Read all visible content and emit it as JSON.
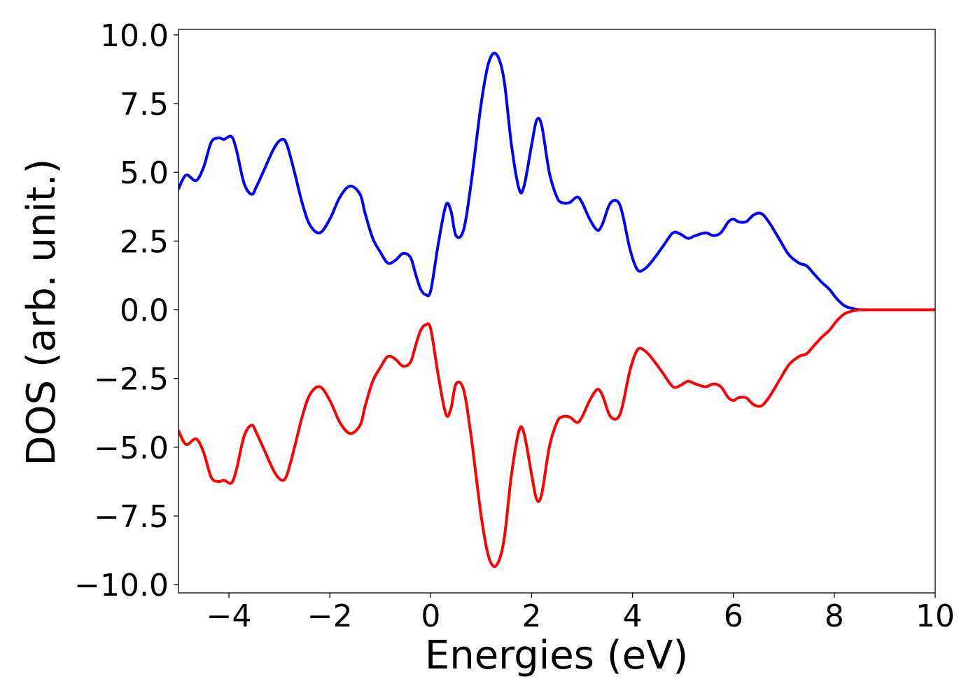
{
  "chart_data": {
    "type": "line",
    "title": "",
    "xlabel": "Energies (eV)",
    "ylabel": "DOS (arb. unit.)",
    "xlim": [
      -5,
      10
    ],
    "ylim": [
      -10.3,
      10.2
    ],
    "x_ticks": [
      -4,
      -2,
      0,
      2,
      4,
      6,
      8,
      10
    ],
    "x_tick_labels": [
      "−4",
      "−2",
      "0",
      "2",
      "4",
      "6",
      "8",
      "10"
    ],
    "y_ticks": [
      10,
      7.5,
      5,
      2.5,
      0,
      -2.5,
      -5,
      -7.5,
      -10
    ],
    "y_tick_labels": [
      "10.0",
      "7.5",
      "5.0",
      "2.5",
      "0.0",
      "−2.5",
      "−5.0",
      "−7.5",
      "−10.0"
    ],
    "grid": false,
    "legend": "none",
    "series": [
      {
        "color": "#0000ff",
        "x": [
          -5.0,
          -4.85,
          -4.65,
          -4.5,
          -4.35,
          -4.2,
          -4.1,
          -3.95,
          -3.85,
          -3.7,
          -3.55,
          -3.45,
          -3.3,
          -3.1,
          -2.95,
          -2.85,
          -2.7,
          -2.55,
          -2.4,
          -2.2,
          -2.0,
          -1.8,
          -1.6,
          -1.4,
          -1.3,
          -1.15,
          -1.0,
          -0.85,
          -0.7,
          -0.55,
          -0.4,
          -0.3,
          -0.2,
          -0.1,
          0.0,
          0.15,
          0.3,
          0.4,
          0.5,
          0.65,
          0.8,
          1.0,
          1.15,
          1.3,
          1.45,
          1.6,
          1.75,
          1.85,
          2.0,
          2.1,
          2.2,
          2.35,
          2.5,
          2.6,
          2.75,
          2.9,
          3.0,
          3.15,
          3.3,
          3.4,
          3.55,
          3.7,
          3.8,
          3.95,
          4.1,
          4.25,
          4.4,
          4.6,
          4.8,
          4.95,
          5.1,
          5.25,
          5.45,
          5.6,
          5.75,
          5.9,
          6.0,
          6.1,
          6.25,
          6.4,
          6.55,
          6.7,
          6.9,
          7.1,
          7.3,
          7.45,
          7.6,
          7.75,
          7.9,
          8.05,
          8.2,
          8.35,
          8.5,
          8.7,
          9.0,
          9.5,
          10.0
        ],
        "y": [
          4.4,
          4.9,
          4.7,
          5.2,
          6.1,
          6.25,
          6.2,
          6.3,
          5.8,
          4.6,
          4.2,
          4.5,
          5.1,
          5.9,
          6.2,
          6.0,
          5.0,
          3.9,
          3.1,
          2.8,
          3.3,
          4.1,
          4.5,
          4.2,
          3.5,
          2.6,
          2.1,
          1.7,
          1.8,
          2.05,
          1.9,
          1.3,
          0.75,
          0.55,
          0.7,
          2.4,
          3.8,
          3.6,
          2.7,
          2.9,
          4.6,
          7.5,
          9.0,
          9.3,
          8.4,
          6.0,
          4.4,
          4.5,
          6.0,
          6.9,
          6.7,
          5.0,
          4.1,
          3.9,
          3.9,
          4.1,
          3.9,
          3.3,
          2.9,
          3.1,
          3.85,
          3.95,
          3.5,
          2.2,
          1.45,
          1.5,
          1.8,
          2.3,
          2.8,
          2.75,
          2.6,
          2.7,
          2.8,
          2.7,
          2.8,
          3.2,
          3.3,
          3.2,
          3.2,
          3.45,
          3.5,
          3.2,
          2.6,
          2.0,
          1.7,
          1.6,
          1.3,
          1.0,
          0.75,
          0.4,
          0.15,
          0.05,
          0.0,
          0.0,
          0.0,
          0.0,
          0.0
        ]
      },
      {
        "color": "#ff0000",
        "x": [
          -5.0,
          -4.85,
          -4.65,
          -4.5,
          -4.35,
          -4.2,
          -4.1,
          -3.95,
          -3.85,
          -3.7,
          -3.55,
          -3.45,
          -3.3,
          -3.1,
          -2.95,
          -2.85,
          -2.7,
          -2.55,
          -2.4,
          -2.2,
          -2.0,
          -1.8,
          -1.6,
          -1.4,
          -1.3,
          -1.15,
          -1.0,
          -0.85,
          -0.7,
          -0.55,
          -0.4,
          -0.3,
          -0.2,
          -0.1,
          0.0,
          0.15,
          0.3,
          0.4,
          0.5,
          0.65,
          0.8,
          1.0,
          1.15,
          1.3,
          1.45,
          1.6,
          1.75,
          1.85,
          2.0,
          2.1,
          2.2,
          2.35,
          2.5,
          2.6,
          2.75,
          2.9,
          3.0,
          3.15,
          3.3,
          3.4,
          3.55,
          3.7,
          3.8,
          3.95,
          4.1,
          4.25,
          4.4,
          4.6,
          4.8,
          4.95,
          5.1,
          5.25,
          5.45,
          5.6,
          5.75,
          5.9,
          6.0,
          6.1,
          6.25,
          6.4,
          6.55,
          6.7,
          6.9,
          7.1,
          7.3,
          7.45,
          7.6,
          7.75,
          7.9,
          8.05,
          8.2,
          8.35,
          8.5,
          8.7,
          9.0,
          9.5,
          10.0
        ],
        "y": [
          -4.4,
          -4.9,
          -4.7,
          -5.2,
          -6.1,
          -6.25,
          -6.2,
          -6.3,
          -5.8,
          -4.6,
          -4.2,
          -4.5,
          -5.1,
          -5.9,
          -6.2,
          -6.0,
          -5.0,
          -3.9,
          -3.1,
          -2.8,
          -3.3,
          -4.1,
          -4.5,
          -4.2,
          -3.5,
          -2.6,
          -2.1,
          -1.7,
          -1.8,
          -2.05,
          -1.9,
          -1.3,
          -0.75,
          -0.55,
          -0.7,
          -2.4,
          -3.8,
          -3.6,
          -2.7,
          -2.9,
          -4.6,
          -7.5,
          -9.0,
          -9.3,
          -8.4,
          -6.0,
          -4.4,
          -4.5,
          -6.0,
          -6.9,
          -6.7,
          -5.0,
          -4.1,
          -3.9,
          -3.9,
          -4.1,
          -3.9,
          -3.3,
          -2.9,
          -3.1,
          -3.85,
          -3.95,
          -3.5,
          -2.2,
          -1.45,
          -1.5,
          -1.8,
          -2.3,
          -2.8,
          -2.75,
          -2.6,
          -2.7,
          -2.8,
          -2.7,
          -2.8,
          -3.2,
          -3.3,
          -3.2,
          -3.2,
          -3.45,
          -3.5,
          -3.2,
          -2.6,
          -2.0,
          -1.7,
          -1.6,
          -1.3,
          -1.0,
          -0.75,
          -0.4,
          -0.15,
          -0.05,
          0.0,
          0.0,
          0.0,
          0.0,
          0.0
        ]
      }
    ]
  }
}
